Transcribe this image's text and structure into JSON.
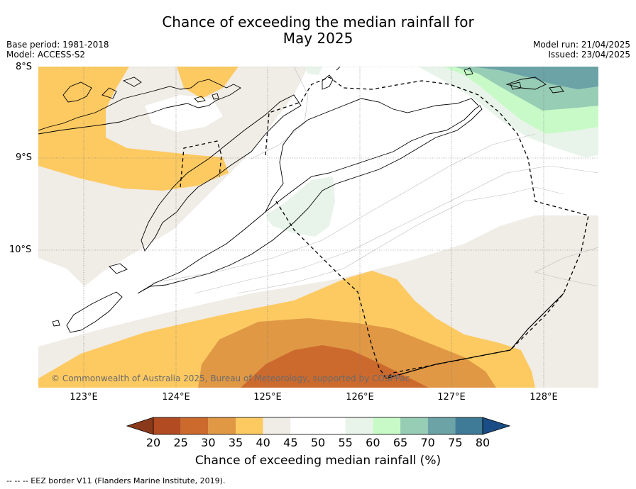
{
  "title_line1": "Chance of exceeding the median rainfall for",
  "title_line2": "May 2025",
  "base_period": "Base period: 1981-2018",
  "model": "Model: ACCESS-S2",
  "model_run": "Model run: 21/04/2025",
  "issued": "Issued: 23/04/2025",
  "lat_labels": [
    "8°S",
    "9°S",
    "10°S"
  ],
  "lon_labels": [
    "123°E",
    "124°E",
    "125°E",
    "126°E",
    "127°E",
    "128°E"
  ],
  "copyright": "© Commonwealth of Australia 2025, Bureau of Meteorology, supported by COSPPac",
  "colorbar": {
    "ticks": [
      "20",
      "25",
      "30",
      "35",
      "40",
      "45",
      "50",
      "55",
      "60",
      "65",
      "70",
      "75",
      "80"
    ],
    "colors": [
      "#b24b22",
      "#cc6a2e",
      "#e09845",
      "#fdca62",
      "#f0ece6",
      "#ffffff",
      "#ffffff",
      "#e8f4ea",
      "#c8fac8",
      "#98cdb5",
      "#6ba3a6",
      "#3f7a96"
    ],
    "low_extend_color": "#8a3a1a",
    "high_extend_color": "#1a4d86",
    "title": "Chance of exceeding median rainfall (%)"
  },
  "footer": "--  --  -- EEZ border V11 (Flanders Marine Institute, 2019)."
}
